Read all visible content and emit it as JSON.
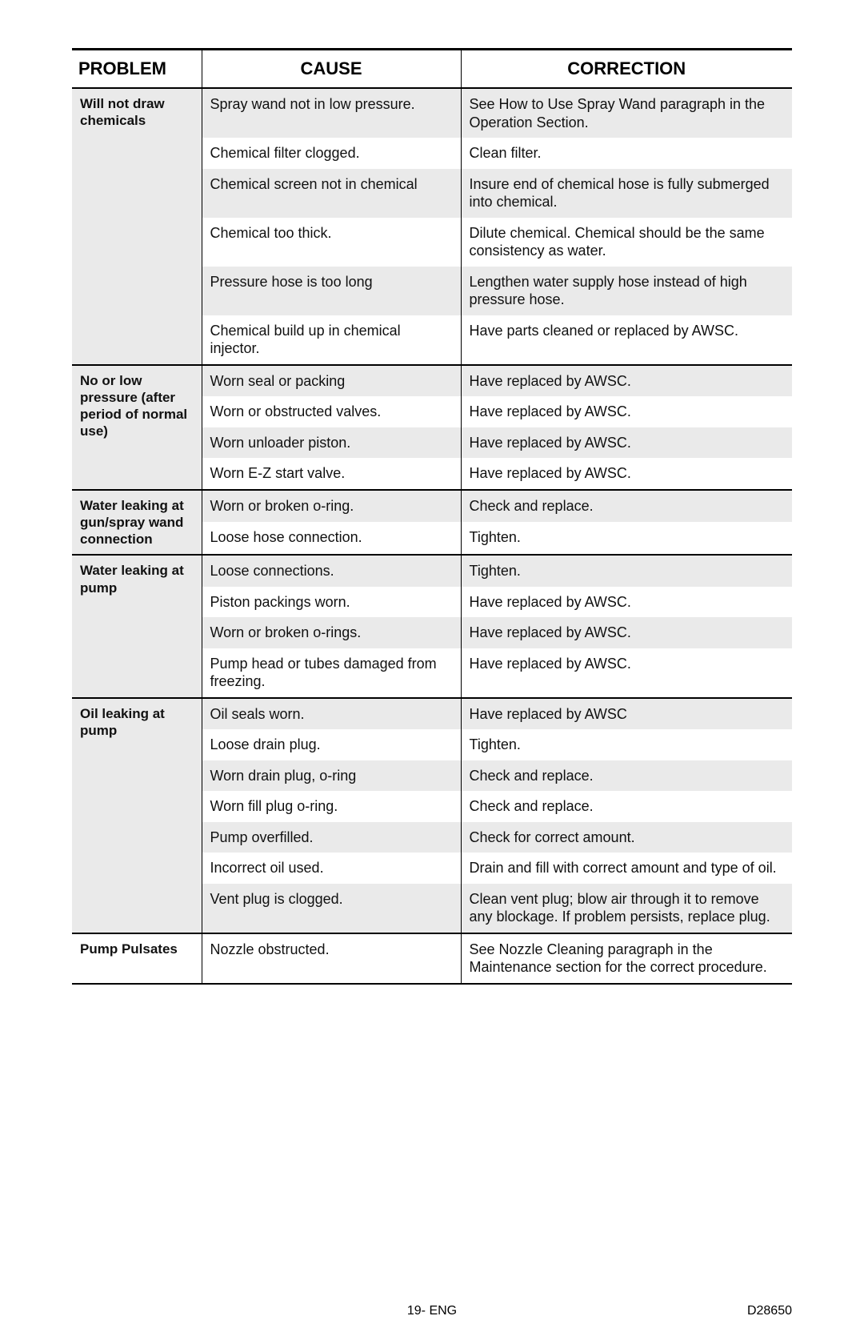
{
  "header": {
    "problem": "PROBLEM",
    "cause": "CAUSE",
    "correction": "CORRECTION"
  },
  "groupA": {
    "problem": "Will not draw chemicals",
    "rows": [
      {
        "cause": "Spray wand not in low pressure.",
        "corr": "See How to Use Spray Wand paragraph in the Operation Section."
      },
      {
        "cause": "Chemical filter clogged.",
        "corr": "Clean filter."
      },
      {
        "cause": "Chemical screen not in chemical",
        "corr": "Insure end of chemical hose is fully submerged into chemical."
      },
      {
        "cause": "Chemical too thick.",
        "corr": "Dilute chemical. Chemical should be the same consistency as water."
      },
      {
        "cause": "Pressure hose is too long",
        "corr": "Lengthen water supply hose instead of high pressure hose."
      },
      {
        "cause": "Chemical build up in chemical injector.",
        "corr": "Have parts cleaned or replaced by AWSC."
      }
    ]
  },
  "groupB": {
    "problem": "No or low pressure (after period of normal use)",
    "rows": [
      {
        "cause": "Worn seal or packing",
        "corr": "Have replaced by AWSC."
      },
      {
        "cause": "Worn or obstructed valves.",
        "corr": "Have replaced by AWSC."
      },
      {
        "cause": "Worn unloader piston.",
        "corr": "Have replaced by AWSC."
      },
      {
        "cause": "Worn E-Z start valve.",
        "corr": "Have replaced by AWSC."
      }
    ]
  },
  "groupC": {
    "problem": "Water leaking at gun/spray wand connection",
    "rows": [
      {
        "cause": "Worn or broken o-ring.",
        "corr": "Check and replace."
      },
      {
        "cause": "Loose hose connection.",
        "corr": "Tighten."
      }
    ]
  },
  "groupD": {
    "problem": "Water leaking at pump",
    "rows": [
      {
        "cause": "Loose connections.",
        "corr": "Tighten."
      },
      {
        "cause": "Piston packings worn.",
        "corr": "Have replaced by AWSC."
      },
      {
        "cause": "Worn or broken o-rings.",
        "corr": "Have replaced by AWSC."
      },
      {
        "cause": "Pump head or tubes damaged from freezing.",
        "corr": "Have replaced by AWSC."
      }
    ]
  },
  "groupE": {
    "problem": "Oil leaking at pump",
    "rows": [
      {
        "cause": "Oil seals worn.",
        "corr": "Have replaced by AWSC"
      },
      {
        "cause": "Loose drain plug.",
        "corr": "Tighten."
      },
      {
        "cause": "Worn drain plug, o-ring",
        "corr": "Check and replace."
      },
      {
        "cause": "Worn fill plug o-ring.",
        "corr": "Check and replace."
      },
      {
        "cause": "Pump overfilled.",
        "corr": "Check for correct amount."
      },
      {
        "cause": "Incorrect oil used.",
        "corr": "Drain and fill with correct amount and type of oil."
      },
      {
        "cause": "Vent plug is clogged.",
        "corr": "Clean vent plug; blow air through it to remove any blockage. If problem persists, replace plug."
      }
    ]
  },
  "groupF": {
    "problem": "Pump Pulsates",
    "rows": [
      {
        "cause": "Nozzle obstructed.",
        "corr": "See Nozzle Cleaning paragraph in the Maintenance section for the correct procedure."
      }
    ]
  },
  "footer": {
    "center": "19- ENG",
    "right": "D28650"
  }
}
